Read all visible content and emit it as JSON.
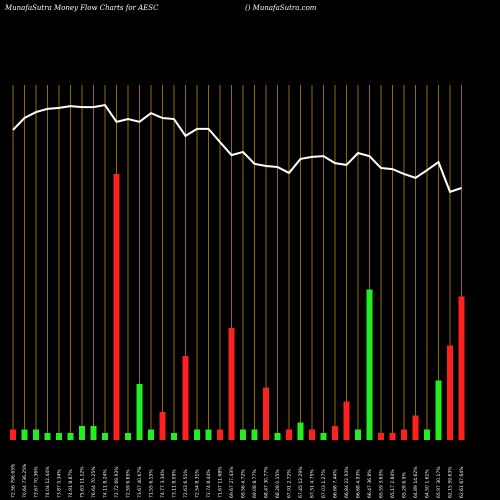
{
  "chart_data": {
    "type": "money-flow",
    "title": "MunafaSutra  Money Flow  Charts for AESC",
    "subtitle": "() MunafaSutra.com",
    "categories": [
      "72.56 796.65%",
      "70.64 736.25%",
      "73.67 70.36%",
      "74.04 12.44%",
      "73.87 0.34%",
      "74.91 8.87%",
      "75.63 11.12%",
      "76.64 70.25%",
      "74.11 8.24%",
      "72.72 69.93%",
      "72.59 6.65%",
      "73.67 40.67%",
      "71.55 6.15%",
      "74.77 3.34%",
      "73.11 8.09%",
      "72.63 6.51%",
      "72.54 8.31%",
      "72.74 8.44%",
      "71.67 11.68%",
      "69.67 27.43%",
      "69.56 4.72%",
      "69.08 8.77%",
      "68.47 30.77%",
      "68.28 0.15%",
      "67.91 2.72%",
      "67.45 12.29%",
      "67.31 4.75%",
      "67.03 1.27%",
      "66.66 7.44%",
      "66.84 22.93%",
      "66.68 4.93%",
      "66.47 36.8%",
      "65.59 3.63%",
      "65.17 2.84%",
      "65.28 6.9%",
      "64.89 14.62%",
      "64.50 1.61%",
      "65.97 30.17%",
      "62.15 59.63%",
      "62.61 67.64%"
    ],
    "series": [
      {
        "name": "money flow",
        "color": "#ffffff",
        "values": [
          88.6,
          92.0,
          93.7,
          94.6,
          94.9,
          95.4,
          95.1,
          95.1,
          95.7,
          90.9,
          91.7,
          90.9,
          93.4,
          92.0,
          91.7,
          86.9,
          88.9,
          88.9,
          85.1,
          81.4,
          82.3,
          78.9,
          78.3,
          78.0,
          76.3,
          80.3,
          80.9,
          81.1,
          79.1,
          78.6,
          82.0,
          81.1,
          77.7,
          77.4,
          76.0,
          74.9,
          77.1,
          79.4,
          70.9,
          72.0
        ]
      },
      {
        "name": "volume",
        "axis": "y2",
        "values": [
          3,
          3,
          3,
          2,
          2,
          2,
          4,
          4,
          2,
          76,
          2,
          16,
          3,
          8,
          2,
          24,
          3,
          3,
          3,
          32,
          3,
          3,
          15,
          2,
          3,
          5,
          3,
          2,
          4,
          11,
          3,
          43,
          2,
          2,
          3,
          7,
          3,
          17,
          27,
          41
        ],
        "colors": [
          "#ff2020",
          "#22ee22",
          "#22ee22",
          "#22ee22",
          "#22ee22",
          "#22ee22",
          "#22ee22",
          "#22ee22",
          "#22ee22",
          "#ff2020",
          "#22ee22",
          "#22ee22",
          "#22ee22",
          "#ff2020",
          "#22ee22",
          "#ff2020",
          "#22ee22",
          "#22ee22",
          "#ff2020",
          "#ff2020",
          "#22ee22",
          "#22ee22",
          "#ff2020",
          "#22ee22",
          "#ff2020",
          "#22ee22",
          "#ff2020",
          "#22ee22",
          "#ff2020",
          "#ff2020",
          "#22ee22",
          "#22ee22",
          "#ff2020",
          "#ff2020",
          "#ff2020",
          "#ff2020",
          "#22ee22",
          "#22ee22",
          "#ff2020",
          "#ff2020"
        ]
      }
    ],
    "ylim": [
      0,
      100
    ],
    "y2lim": [
      0,
      100
    ],
    "grid_color": "#b8860b"
  }
}
